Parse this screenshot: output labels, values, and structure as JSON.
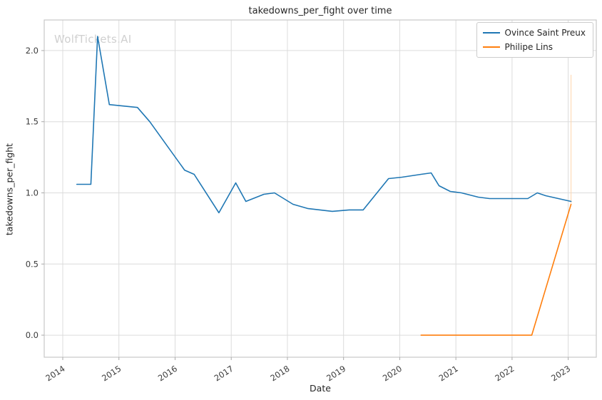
{
  "title": "takedowns_per_fight over time",
  "watermark": "WolfTickets.AI",
  "chart_data": {
    "type": "line",
    "title": "takedowns_per_fight over time",
    "xlabel": "Date",
    "ylabel": "takedowns_per_fight",
    "xlim": [
      2013.67,
      2023.5
    ],
    "ylim": [
      -0.155,
      2.215
    ],
    "grid": true,
    "legend_position": "upper right",
    "x_ticks": [
      {
        "v": 2014,
        "label": "2014"
      },
      {
        "v": 2015,
        "label": "2015"
      },
      {
        "v": 2016,
        "label": "2016"
      },
      {
        "v": 2017,
        "label": "2017"
      },
      {
        "v": 2018,
        "label": "2018"
      },
      {
        "v": 2019,
        "label": "2019"
      },
      {
        "v": 2020,
        "label": "2020"
      },
      {
        "v": 2021,
        "label": "2021"
      },
      {
        "v": 2022,
        "label": "2022"
      },
      {
        "v": 2023,
        "label": "2023"
      }
    ],
    "y_ticks": [
      {
        "v": 0.0,
        "label": "0.0"
      },
      {
        "v": 0.5,
        "label": "0.5"
      },
      {
        "v": 1.0,
        "label": "1.0"
      },
      {
        "v": 1.5,
        "label": "1.5"
      },
      {
        "v": 2.0,
        "label": "2.0"
      }
    ],
    "series": [
      {
        "name": "Ovince Saint Preux",
        "color": "#1f77b4",
        "points": [
          [
            2014.25,
            1.06
          ],
          [
            2014.5,
            1.06
          ],
          [
            2014.62,
            2.1
          ],
          [
            2014.83,
            1.62
          ],
          [
            2015.08,
            1.61
          ],
          [
            2015.33,
            1.6
          ],
          [
            2015.55,
            1.5
          ],
          [
            2016.17,
            1.16
          ],
          [
            2016.34,
            1.13
          ],
          [
            2016.78,
            0.86
          ],
          [
            2017.08,
            1.07
          ],
          [
            2017.26,
            0.94
          ],
          [
            2017.58,
            0.99
          ],
          [
            2017.77,
            1.0
          ],
          [
            2018.1,
            0.92
          ],
          [
            2018.36,
            0.89
          ],
          [
            2018.8,
            0.87
          ],
          [
            2019.1,
            0.88
          ],
          [
            2019.35,
            0.88
          ],
          [
            2019.8,
            1.1
          ],
          [
            2020.04,
            1.11
          ],
          [
            2020.38,
            1.13
          ],
          [
            2020.56,
            1.14
          ],
          [
            2020.7,
            1.05
          ],
          [
            2020.9,
            1.01
          ],
          [
            2021.1,
            1.0
          ],
          [
            2021.4,
            0.97
          ],
          [
            2021.6,
            0.96
          ],
          [
            2022.0,
            0.96
          ],
          [
            2022.28,
            0.96
          ],
          [
            2022.45,
            1.0
          ],
          [
            2022.6,
            0.98
          ],
          [
            2023.05,
            0.94
          ]
        ]
      },
      {
        "name": "Philipe Lins",
        "color": "#ff7f0e",
        "points": [
          [
            2020.38,
            0.0
          ],
          [
            2020.9,
            0.0
          ],
          [
            2021.3,
            0.0
          ],
          [
            2021.9,
            0.0
          ],
          [
            2022.35,
            0.0
          ],
          [
            2023.05,
            0.92
          ]
        ]
      }
    ],
    "annotation_line": {
      "x": 2023.05,
      "y0": 0.93,
      "y1": 1.83,
      "color": "#ffd8b1"
    },
    "colors": {
      "grid": "#dcdcdc",
      "border": "#c8c8c8",
      "tick": "#aaaaaa",
      "tick_label": "#3b3b3b"
    }
  }
}
